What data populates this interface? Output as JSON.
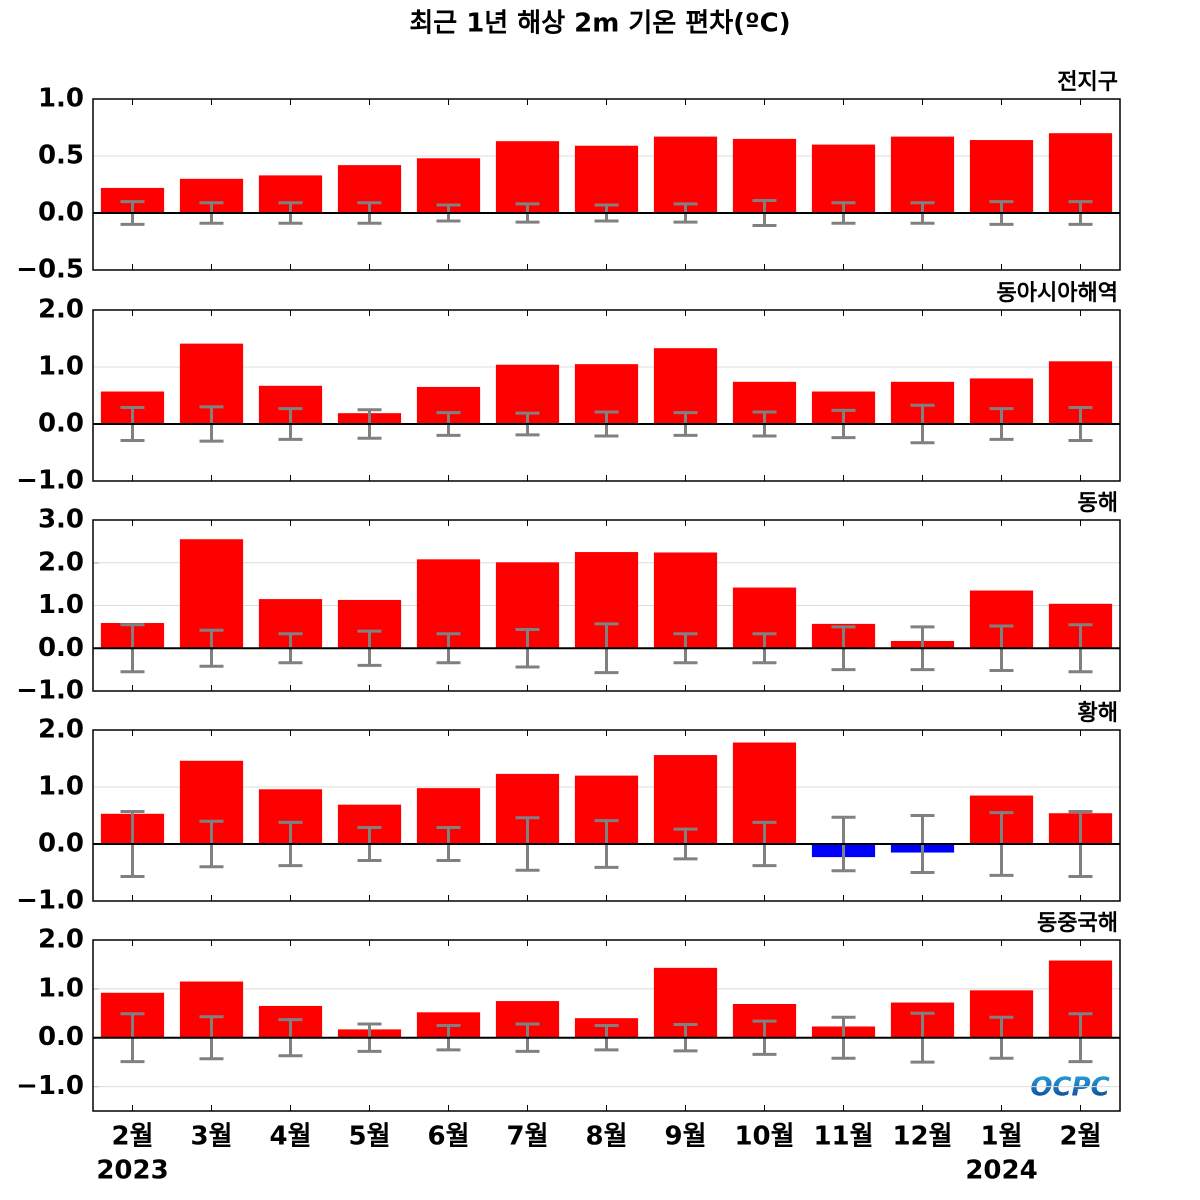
{
  "title": "최근 1년 해상 2m 기온 편차(ºC)",
  "logo": "OCPC",
  "chart_data": [
    {
      "type": "bar",
      "title": "전지구",
      "color": "#ff0000",
      "error_color": "#808080",
      "grid": true,
      "ylim": [
        -0.5,
        1.0
      ],
      "yticks": [
        {
          "value": -0.5,
          "label": "−0.5"
        },
        {
          "value": 0,
          "label": "0.0"
        },
        0.5,
        {
          "value": 1,
          "label": "1.0"
        }
      ],
      "values": [
        0.22,
        0.3,
        0.33,
        0.42,
        0.48,
        0.63,
        0.59,
        0.67,
        0.65,
        0.6,
        0.67,
        0.64,
        0.7
      ],
      "errors": [
        0.1,
        0.09,
        0.09,
        0.09,
        0.07,
        0.08,
        0.07,
        0.08,
        0.11,
        0.09,
        0.09,
        0.1,
        0.1
      ]
    },
    {
      "type": "bar",
      "title": "동아시아해역",
      "color": "#ff0000",
      "error_color": "#808080",
      "grid": true,
      "ylim": [
        -1,
        2
      ],
      "yticks": [
        {
          "value": -1,
          "label": "−1.0"
        },
        {
          "value": 0,
          "label": "0.0"
        },
        {
          "value": 1,
          "label": "1.0"
        },
        {
          "value": 2,
          "label": "2.0"
        }
      ],
      "values": [
        0.57,
        1.41,
        0.67,
        0.19,
        0.65,
        1.04,
        1.05,
        1.33,
        0.74,
        0.57,
        0.74,
        0.8,
        1.1
      ],
      "errors": [
        0.29,
        0.3,
        0.27,
        0.25,
        0.2,
        0.19,
        0.21,
        0.2,
        0.21,
        0.24,
        0.33,
        0.27,
        0.29
      ]
    },
    {
      "type": "bar",
      "title": "동해",
      "color": "#ff0000",
      "error_color": "#808080",
      "grid": true,
      "ylim": [
        -1,
        3
      ],
      "yticks": [
        {
          "value": -1,
          "label": "−1.0"
        },
        {
          "value": 0,
          "label": "0.0"
        },
        {
          "value": 1,
          "label": "1.0"
        },
        {
          "value": 2,
          "label": "2.0"
        },
        {
          "value": 3,
          "label": "3.0"
        }
      ],
      "values": [
        0.59,
        2.55,
        1.15,
        1.13,
        2.08,
        2.01,
        2.25,
        2.24,
        1.42,
        0.57,
        0.17,
        1.35,
        1.04
      ],
      "errors": [
        0.55,
        0.42,
        0.34,
        0.4,
        0.34,
        0.44,
        0.57,
        0.34,
        0.34,
        0.5,
        0.5,
        0.52,
        0.55
      ]
    },
    {
      "type": "bar",
      "title": "황해",
      "color": "#ff0000",
      "negative_color": "#0000ff",
      "error_color": "#808080",
      "grid": true,
      "ylim": [
        -1,
        2
      ],
      "yticks": [
        {
          "value": -1,
          "label": "−1.0"
        },
        {
          "value": 0,
          "label": "0.0"
        },
        {
          "value": 1,
          "label": "1.0"
        },
        {
          "value": 2,
          "label": "2.0"
        }
      ],
      "values": [
        0.53,
        1.46,
        0.96,
        0.69,
        0.98,
        1.23,
        1.2,
        1.56,
        1.78,
        -0.23,
        -0.15,
        0.85,
        0.54
      ],
      "errors": [
        0.57,
        0.4,
        0.38,
        0.29,
        0.29,
        0.46,
        0.41,
        0.26,
        0.38,
        0.47,
        0.5,
        0.55,
        0.57
      ]
    },
    {
      "type": "bar",
      "title": "동중국해",
      "color": "#ff0000",
      "error_color": "#808080",
      "grid": true,
      "ylim": [
        -1.5,
        2
      ],
      "yticks": [
        {
          "value": -1,
          "label": "−1.0"
        },
        {
          "value": 0,
          "label": "0.0"
        },
        {
          "value": 1,
          "label": "1.0"
        },
        {
          "value": 2,
          "label": "2.0"
        }
      ],
      "categories": [
        "2월",
        "3월",
        "4월",
        "5월",
        "6월",
        "7월",
        "8월",
        "9월",
        "10월",
        "11월",
        "12월",
        "1월",
        "2월"
      ],
      "years": [
        "2023",
        null,
        null,
        null,
        null,
        null,
        null,
        null,
        null,
        null,
        null,
        "2024",
        null
      ],
      "values": [
        0.92,
        1.15,
        0.65,
        0.17,
        0.52,
        0.75,
        0.4,
        1.43,
        0.69,
        0.23,
        0.72,
        0.97,
        1.58
      ],
      "errors": [
        0.49,
        0.43,
        0.37,
        0.28,
        0.25,
        0.28,
        0.25,
        0.27,
        0.34,
        0.42,
        0.5,
        0.42,
        0.49
      ]
    }
  ]
}
